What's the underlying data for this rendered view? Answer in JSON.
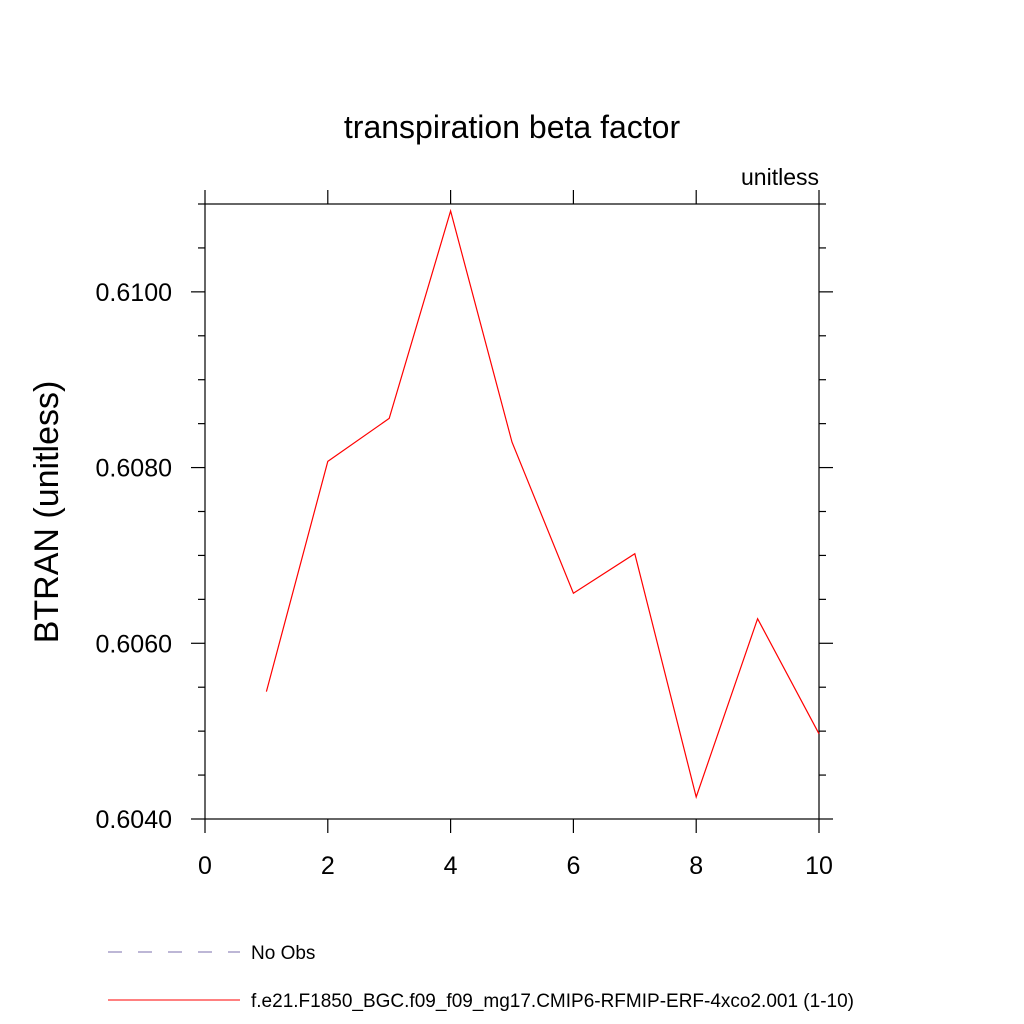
{
  "chart_data": {
    "type": "line",
    "title": "transpiration beta factor",
    "units_label": "unitless",
    "xlabel": "",
    "ylabel": "BTRAN  (unitless)",
    "xlim": [
      0,
      10
    ],
    "ylim": [
      0.604,
      0.611
    ],
    "x_major_ticks": [
      0,
      2,
      4,
      6,
      8,
      10
    ],
    "x_tick_labels": [
      "0",
      "2",
      "4",
      "6",
      "8",
      "10"
    ],
    "y_major_ticks": [
      0.604,
      0.606,
      0.608,
      0.61
    ],
    "y_tick_labels": [
      "0.6040",
      "0.6060",
      "0.6080",
      "0.6100"
    ],
    "y_minor_step": 0.0005,
    "grid": false,
    "legend_position": "bottom",
    "series": [
      {
        "name": "f.e21.F1850_BGC.f09_f09_mg17.CMIP6-RFMIP-ERF-4xco2.001 (1-10)",
        "color": "#ff0000",
        "style": "solid",
        "x": [
          1,
          2,
          3,
          4,
          5,
          6,
          7,
          8,
          9,
          10
        ],
        "y": [
          0.60545,
          0.60807,
          0.60856,
          0.61092,
          0.60829,
          0.60657,
          0.60702,
          0.60425,
          0.60628,
          0.60497
        ]
      }
    ],
    "legend": [
      {
        "label": "No Obs",
        "color": "#7b6fae",
        "style": "dashed"
      },
      {
        "label": "f.e21.F1850_BGC.f09_f09_mg17.CMIP6-RFMIP-ERF-4xco2.001 (1-10)",
        "color": "#ff0000",
        "style": "solid"
      }
    ]
  }
}
